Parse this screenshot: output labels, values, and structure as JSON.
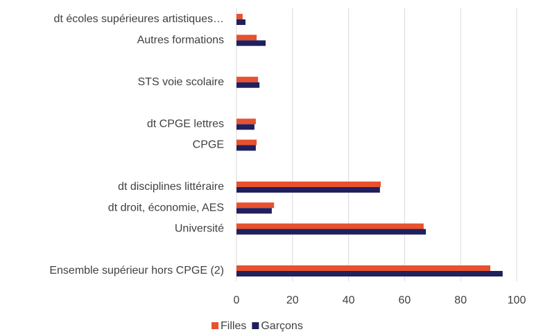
{
  "chart_data": {
    "type": "bar",
    "orientation": "horizontal",
    "categories": [
      "dt écoles supérieures artistiques…",
      "Autres formations",
      null,
      "STS voie scolaire",
      null,
      "dt CPGE lettres",
      "CPGE",
      null,
      "dt disciplines littéraire",
      "dt droit, économie, AES",
      "Université",
      null,
      "Ensemble supérieur hors CPGE (2)"
    ],
    "series": [
      {
        "name": "Filles",
        "color": "#e8502e",
        "values": [
          2.2,
          7.2,
          null,
          7.7,
          null,
          6.9,
          7.2,
          null,
          51.5,
          13.4,
          66.8,
          null,
          90.6
        ]
      },
      {
        "name": "Garçons",
        "color": "#20205e",
        "values": [
          3.2,
          10.4,
          null,
          8.2,
          null,
          6.4,
          6.9,
          null,
          51.2,
          12.6,
          67.6,
          null,
          95
        ]
      }
    ],
    "xlim": [
      0,
      100
    ],
    "xticks": [
      0,
      20,
      40,
      60,
      80,
      100
    ],
    "grid": true,
    "legend": "bottom"
  }
}
